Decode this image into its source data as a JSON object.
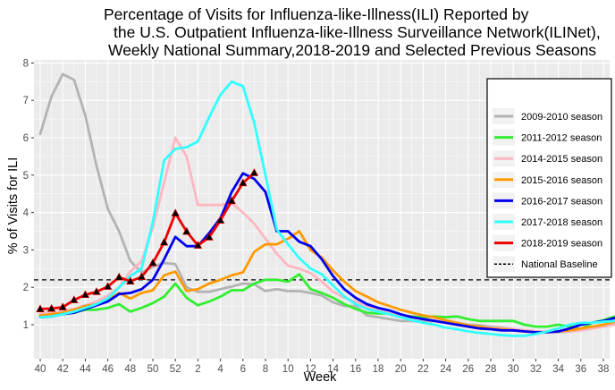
{
  "chart_data": {
    "type": "line",
    "title_lines": [
      "Percentage of Visits for Influenza-like-Illness(ILI) Reported by",
      "the U.S. Outpatient Influenza-like-Illness Surveillance Network(ILINet),",
      "Weekly National Summary,2018-2019 and Selected Previous Seasons"
    ],
    "xlabel": "Week",
    "ylabel": "% of Visits for ILI",
    "x_tick_labels": [
      "40",
      "42",
      "44",
      "46",
      "48",
      "50",
      "52",
      "2",
      "4",
      "6",
      "8",
      "10",
      "12",
      "14",
      "16",
      "18",
      "20",
      "22",
      "24",
      "26",
      "28",
      "30",
      "32",
      "34",
      "36",
      "38"
    ],
    "y_ticks": [
      1,
      2,
      3,
      4,
      5,
      6,
      7,
      8
    ],
    "ylim": [
      0.6,
      8.1
    ],
    "x_index_range": [
      0,
      51
    ],
    "grid": true,
    "background": "#ebebeb",
    "legend_position": "right",
    "series": [
      {
        "name": "2009-2010 season",
        "color": "#b3b3b3",
        "markers": false,
        "values": [
          6.1,
          7.1,
          7.7,
          7.55,
          6.6,
          5.25,
          4.1,
          3.5,
          2.7,
          2.4,
          2.55,
          2.65,
          2.62,
          2.0,
          1.88,
          1.88,
          1.95,
          2.02,
          2.1,
          2.08,
          1.9,
          1.95,
          1.9,
          1.9,
          1.85,
          1.78,
          1.6,
          1.5,
          1.5,
          1.25,
          1.2,
          1.15,
          1.1,
          1.1,
          1.08,
          1.1,
          1.08,
          1.05,
          1.0,
          0.98,
          0.95,
          0.92,
          0.88,
          0.85,
          0.82,
          0.8,
          0.8,
          0.82,
          0.85,
          0.9,
          1.0,
          1.05
        ]
      },
      {
        "name": "2011-2012 season",
        "color": "#33ee33",
        "markers": false,
        "values": [
          1.2,
          1.25,
          1.28,
          1.32,
          1.4,
          1.4,
          1.45,
          1.55,
          1.35,
          1.45,
          1.58,
          1.75,
          2.1,
          1.72,
          1.52,
          1.62,
          1.75,
          1.92,
          1.92,
          2.1,
          2.2,
          2.2,
          2.15,
          2.35,
          1.95,
          1.85,
          1.72,
          1.55,
          1.42,
          1.32,
          1.3,
          1.3,
          1.25,
          1.22,
          1.2,
          1.22,
          1.2,
          1.22,
          1.15,
          1.1,
          1.1,
          1.1,
          1.1,
          1.0,
          0.95,
          0.95,
          1.0,
          0.95,
          0.88,
          1.05,
          1.12,
          1.22
        ]
      },
      {
        "name": "2014-2015 season",
        "color": "#ffb6c1",
        "markers": false,
        "values": [
          1.3,
          1.32,
          1.36,
          1.42,
          1.52,
          1.62,
          1.78,
          2.0,
          2.42,
          2.7,
          3.6,
          4.8,
          6.0,
          5.5,
          4.2,
          4.2,
          4.2,
          4.25,
          4.0,
          3.7,
          3.3,
          2.9,
          2.58,
          2.5,
          2.38,
          2.15,
          1.88,
          1.72,
          1.62,
          1.48,
          1.38,
          1.3,
          1.25,
          1.2,
          1.15,
          1.12,
          1.08,
          1.02,
          0.98,
          0.95,
          0.92,
          0.9,
          0.88,
          0.85,
          0.82,
          0.82,
          0.82,
          0.82,
          0.85,
          0.9,
          0.95,
          1.0
        ]
      },
      {
        "name": "2015-2016 season",
        "color": "#ff9900",
        "markers": false,
        "values": [
          1.25,
          1.28,
          1.32,
          1.4,
          1.5,
          1.55,
          1.65,
          1.85,
          1.7,
          1.85,
          1.92,
          2.32,
          2.42,
          1.9,
          1.95,
          2.1,
          2.2,
          2.32,
          2.4,
          2.95,
          3.15,
          3.15,
          3.3,
          3.5,
          3.0,
          2.8,
          2.45,
          2.15,
          1.9,
          1.75,
          1.6,
          1.5,
          1.4,
          1.32,
          1.25,
          1.2,
          1.12,
          1.05,
          0.98,
          0.95,
          0.9,
          0.88,
          0.85,
          0.82,
          0.8,
          0.8,
          0.82,
          0.85,
          0.9,
          0.95,
          1.0,
          1.08
        ]
      },
      {
        "name": "2016-2017 season",
        "color": "#0000ee",
        "markers": false,
        "values": [
          1.2,
          1.22,
          1.28,
          1.32,
          1.42,
          1.52,
          1.62,
          1.82,
          1.85,
          1.95,
          2.2,
          2.75,
          3.35,
          3.1,
          3.1,
          3.45,
          3.85,
          4.55,
          5.05,
          4.9,
          4.55,
          3.5,
          3.5,
          3.22,
          3.1,
          2.75,
          2.3,
          1.95,
          1.72,
          1.55,
          1.45,
          1.38,
          1.28,
          1.2,
          1.15,
          1.1,
          1.05,
          1.0,
          0.95,
          0.9,
          0.88,
          0.85,
          0.85,
          0.82,
          0.8,
          0.8,
          0.82,
          0.9,
          1.0,
          1.05,
          1.1,
          1.18
        ]
      },
      {
        "name": "2017-2018 season",
        "color": "#33ffff",
        "markers": false,
        "values": [
          1.2,
          1.22,
          1.28,
          1.35,
          1.45,
          1.55,
          1.7,
          2.0,
          2.3,
          2.5,
          3.75,
          5.4,
          5.7,
          5.75,
          5.9,
          6.55,
          7.15,
          7.5,
          7.38,
          6.4,
          5.0,
          3.55,
          3.15,
          2.78,
          2.5,
          2.35,
          2.05,
          1.75,
          1.55,
          1.42,
          1.35,
          1.28,
          1.2,
          1.12,
          1.05,
          1.0,
          0.92,
          0.88,
          0.82,
          0.78,
          0.75,
          0.72,
          0.7,
          0.7,
          0.75,
          0.82,
          0.9,
          1.0,
          1.05,
          1.05,
          1.08,
          1.1
        ]
      },
      {
        "name": "2018-2019 season",
        "color": "#ee0000",
        "markers": true,
        "values": [
          1.42,
          1.43,
          1.47,
          1.66,
          1.8,
          1.88,
          2.02,
          2.27,
          2.16,
          2.28,
          2.65,
          3.2,
          3.98,
          3.49,
          3.12,
          3.34,
          3.79,
          4.31,
          4.79,
          5.06
        ]
      }
    ],
    "baseline": {
      "name": "National Baseline",
      "value": 2.2,
      "color": "#000000",
      "style": "dashed"
    }
  }
}
